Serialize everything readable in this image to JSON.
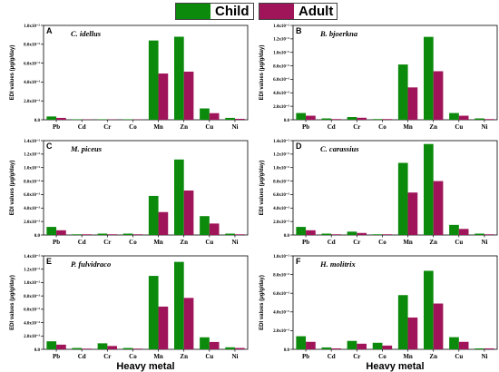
{
  "colors": {
    "child": "#0b8a0b",
    "adult": "#a0145a"
  },
  "legend": [
    {
      "name": "Child",
      "color": "#0b8a0b"
    },
    {
      "name": "Adult",
      "color": "#a0145a"
    }
  ],
  "chart_data": [
    {
      "type": "bar",
      "panel": "A",
      "title": "C. idellus",
      "categories": [
        "Pb",
        "Cd",
        "Cr",
        "Co",
        "Mn",
        "Zn",
        "Cu",
        "Ni"
      ],
      "ylabel": "EDI values (μg/g/day)",
      "xlabel": "",
      "ylim": [
        0,
        0.01
      ],
      "yticks": [
        0,
        0.002,
        0.004,
        0.006,
        0.008,
        0.01
      ],
      "ytick_labels": [
        "0.0",
        "2.0x10⁻³",
        "4.0x10⁻³",
        "6.0x10⁻³",
        "8.0x10⁻³",
        "1.0x10⁻²"
      ],
      "series": [
        {
          "name": "Child",
          "values": [
            0.00035,
            5e-05,
            5e-05,
            5e-05,
            0.0084,
            0.0088,
            0.0012,
            0.0002
          ]
        },
        {
          "name": "Adult",
          "values": [
            0.0002,
            3e-05,
            3e-05,
            3e-05,
            0.0049,
            0.0051,
            0.0007,
            0.0001
          ]
        }
      ]
    },
    {
      "type": "bar",
      "panel": "B",
      "title": "B. bjoerkna",
      "categories": [
        "Pb",
        "Cd",
        "Cr",
        "Co",
        "Mn",
        "Zn",
        "Cu",
        "Ni"
      ],
      "ylabel": "EDI values (μg/g/day)",
      "xlabel": "",
      "ylim": [
        0,
        0.014
      ],
      "yticks": [
        0,
        0.002,
        0.004,
        0.006,
        0.008,
        0.01,
        0.012,
        0.014
      ],
      "ytick_labels": [
        "0.0",
        "2.0x10⁻³",
        "4.0x10⁻³",
        "6.0x10⁻³",
        "8.0x10⁻³",
        "1.0x10⁻²",
        "1.2x10⁻²",
        "1.4x10⁻²"
      ],
      "series": [
        {
          "name": "Child",
          "values": [
            0.001,
            0.0002,
            0.0004,
            0.0001,
            0.0082,
            0.0123,
            0.001,
            0.0002
          ]
        },
        {
          "name": "Adult",
          "values": [
            0.0006,
            0.0001,
            0.0003,
            0.0001,
            0.0048,
            0.0072,
            0.0006,
            0.0001
          ]
        }
      ]
    },
    {
      "type": "bar",
      "panel": "C",
      "title": "M. piceus",
      "categories": [
        "Pb",
        "Cd",
        "Cr",
        "Co",
        "Mn",
        "Zn",
        "Cu",
        "Ni"
      ],
      "ylabel": "EDI values (μg/g/day)",
      "xlabel": "",
      "ylim": [
        0,
        0.014
      ],
      "yticks": [
        0,
        0.002,
        0.004,
        0.006,
        0.008,
        0.01,
        0.012,
        0.014
      ],
      "ytick_labels": [
        "0.0",
        "2.0x10⁻³",
        "4.0x10⁻³",
        "6.0x10⁻³",
        "8.0x10⁻³",
        "1.0x10⁻²",
        "1.2x10⁻²",
        "1.4x10⁻²"
      ],
      "series": [
        {
          "name": "Child",
          "values": [
            0.0012,
            0.0001,
            0.0002,
            0.0002,
            0.0058,
            0.0112,
            0.0028,
            0.0002
          ]
        },
        {
          "name": "Adult",
          "values": [
            0.0007,
            0.0001,
            0.0001,
            0.0001,
            0.0034,
            0.0066,
            0.0017,
            0.0001
          ]
        }
      ]
    },
    {
      "type": "bar",
      "panel": "D",
      "title": "C. carassius",
      "categories": [
        "Pb",
        "Cd",
        "Cr",
        "Co",
        "Mn",
        "Zn",
        "Cu",
        "Ni"
      ],
      "ylabel": "EDI values (μg/g/day)",
      "xlabel": "",
      "ylim": [
        0,
        0.014
      ],
      "yticks": [
        0,
        0.002,
        0.004,
        0.006,
        0.008,
        0.01,
        0.012,
        0.014
      ],
      "ytick_labels": [
        "0.0",
        "2.0x10⁻³",
        "4.0x10⁻³",
        "6.0x10⁻³",
        "8.0x10⁻³",
        "1.0x10⁻²",
        "1.2x10⁻²",
        "1.4x10⁻²"
      ],
      "series": [
        {
          "name": "Child",
          "values": [
            0.0012,
            0.0002,
            0.0005,
            0.0001,
            0.0107,
            0.0135,
            0.0015,
            0.0002
          ]
        },
        {
          "name": "Adult",
          "values": [
            0.0007,
            0.0001,
            0.0003,
            0.0001,
            0.0063,
            0.008,
            0.0009,
            0.0001
          ]
        }
      ]
    },
    {
      "type": "bar",
      "panel": "E",
      "title": "P. fulvidraco",
      "categories": [
        "Pb",
        "Cd",
        "Cr",
        "Co",
        "Mn",
        "Zn",
        "Cu",
        "Ni"
      ],
      "ylabel": "EDI values (μg/g/day)",
      "xlabel": "Heavy metal",
      "ylim": [
        0,
        0.014
      ],
      "yticks": [
        0,
        0.002,
        0.004,
        0.006,
        0.008,
        0.01,
        0.012,
        0.014
      ],
      "ytick_labels": [
        "0.0",
        "2.0x10⁻³",
        "4.0x10⁻³",
        "6.0x10⁻³",
        "8.0x10⁻³",
        "1.0x10⁻²",
        "1.2x10⁻²",
        "1.4x10⁻²"
      ],
      "series": [
        {
          "name": "Child",
          "values": [
            0.0012,
            0.0002,
            0.0009,
            0.0002,
            0.011,
            0.0131,
            0.0018,
            0.0003
          ]
        },
        {
          "name": "Adult",
          "values": [
            0.0007,
            0.0001,
            0.0005,
            0.0001,
            0.0064,
            0.0077,
            0.0011,
            0.0002
          ]
        }
      ]
    },
    {
      "type": "bar",
      "panel": "F",
      "title": "H. molitrix",
      "categories": [
        "Pb",
        "Cd",
        "Cr",
        "Co",
        "Mn",
        "Zn",
        "Cu",
        "Ni"
      ],
      "ylabel": "EDI values (μg/g/day)",
      "xlabel": "Heavy metal",
      "ylim": [
        0,
        0.01
      ],
      "yticks": [
        0,
        0.002,
        0.004,
        0.006,
        0.008,
        0.01
      ],
      "ytick_labels": [
        "0.0",
        "2.0x10⁻³",
        "4.0x10⁻³",
        "6.0x10⁻³",
        "8.0x10⁻³",
        "1.0x10⁻²"
      ],
      "series": [
        {
          "name": "Child",
          "values": [
            0.0014,
            0.0002,
            0.0009,
            0.0007,
            0.0058,
            0.0084,
            0.0013,
            0.0001
          ]
        },
        {
          "name": "Adult",
          "values": [
            0.0008,
            0.0001,
            0.0006,
            0.0004,
            0.0034,
            0.0049,
            0.0008,
            0.0001
          ]
        }
      ]
    }
  ]
}
